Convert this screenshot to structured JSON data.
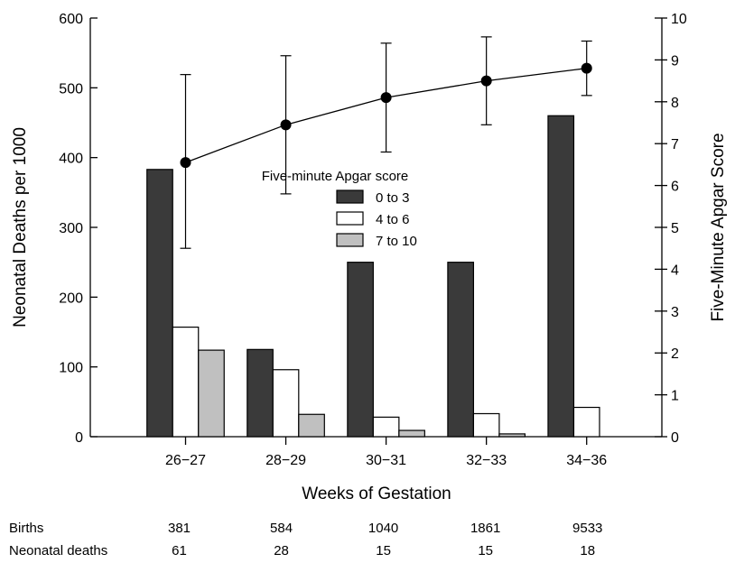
{
  "chart_data": {
    "type": "bar",
    "categories": [
      "26−27",
      "28−29",
      "30−31",
      "32−33",
      "34−36"
    ],
    "xlabel": "Weeks of Gestation",
    "ylabel": "Neonatal Deaths per 1000",
    "ylabel_right": "Five-Minute Apgar Score",
    "ylim": [
      0,
      600
    ],
    "ylim_right": [
      0,
      10
    ],
    "yticks": [
      0,
      100,
      200,
      300,
      400,
      500,
      600
    ],
    "yticks_right": [
      0,
      1,
      2,
      3,
      4,
      5,
      6,
      7,
      8,
      9,
      10
    ],
    "legend_title": "Five-minute Apgar score",
    "legend_placement": "center",
    "series": [
      {
        "name": "0 to 3",
        "color": "#3a3a3a",
        "values": [
          383,
          125,
          250,
          250,
          460
        ]
      },
      {
        "name": "4 to 6",
        "color": "#ffffff",
        "values": [
          157,
          96,
          28,
          33,
          42
        ]
      },
      {
        "name": "7 to 10",
        "color": "#c0c0c0",
        "values": [
          124,
          32,
          9,
          4,
          null
        ]
      }
    ],
    "line_series": {
      "axis": "right",
      "values": [
        6.55,
        7.45,
        8.1,
        8.5,
        8.8
      ],
      "error_low": [
        4.5,
        5.8,
        6.8,
        7.45,
        8.15
      ],
      "error_high": [
        8.65,
        9.1,
        9.4,
        9.55,
        9.45
      ]
    },
    "grid": false
  },
  "table": {
    "rows": [
      {
        "label": "Births",
        "values": [
          "381",
          "584",
          "1040",
          "1861",
          "9533"
        ]
      },
      {
        "label": "Neonatal deaths",
        "values": [
          "61",
          "28",
          "15",
          "15",
          "18"
        ]
      }
    ]
  }
}
